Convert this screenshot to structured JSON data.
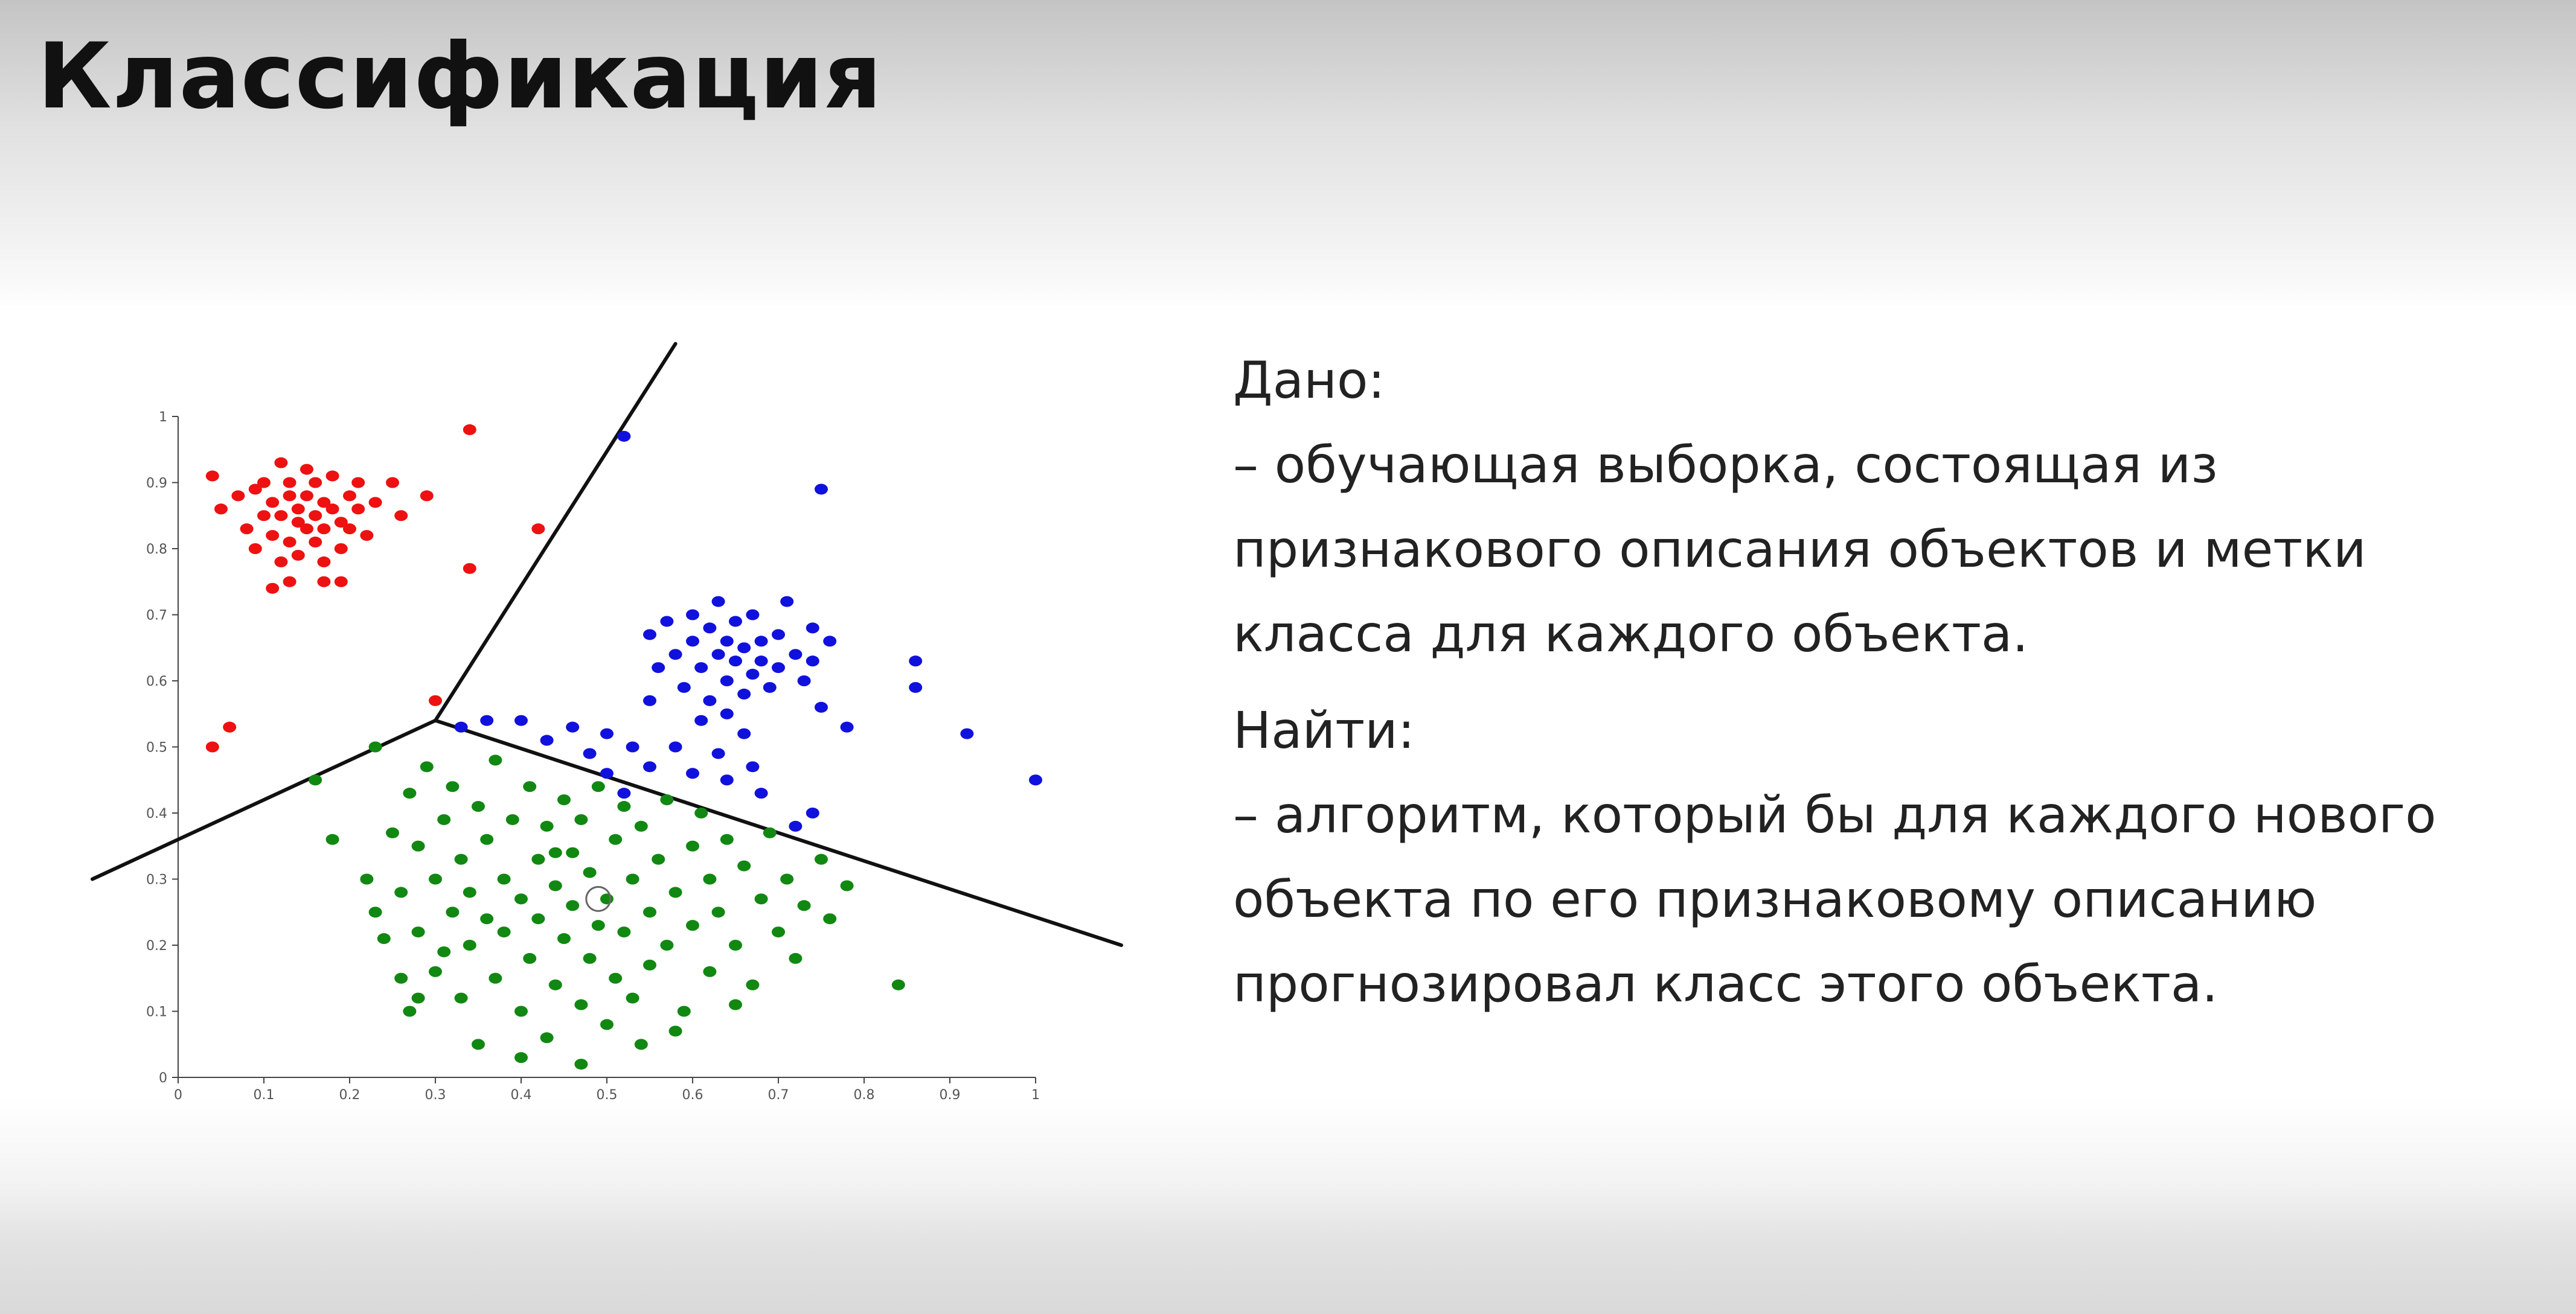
{
  "slide": {
    "title": "Классификация"
  },
  "text": {
    "given_label": "Дано:",
    "given_lines": [
      "–  обучающая выборка, состоящая из",
      "признакового описания объектов и метки",
      "класса для каждого объекта."
    ],
    "find_label": "Найти:",
    "find_lines": [
      "–  алгоритм, который бы для каждого нового",
      "объекта по его признаковому описанию",
      "прогнозировал класс этого объекта."
    ]
  },
  "chart_data": {
    "type": "scatter",
    "title": "",
    "xlabel": "",
    "ylabel": "",
    "xlim": [
      0,
      1
    ],
    "ylim": [
      0,
      1
    ],
    "x_ticks": [
      "0",
      "0.1",
      "0.2",
      "0.3",
      "0.4",
      "0.5",
      "0.6",
      "0.7",
      "0.8",
      "0.9",
      "1"
    ],
    "y_ticks": [
      "0",
      "0.1",
      "0.2",
      "0.3",
      "0.4",
      "0.5",
      "0.6",
      "0.7",
      "0.8",
      "0.9",
      "1"
    ],
    "grid": false,
    "legend": "none",
    "series": [
      {
        "color": "#ee1111",
        "points": [
          [
            0.04,
            0.91
          ],
          [
            0.05,
            0.86
          ],
          [
            0.07,
            0.88
          ],
          [
            0.08,
            0.83
          ],
          [
            0.09,
            0.89
          ],
          [
            0.09,
            0.8
          ],
          [
            0.1,
            0.85
          ],
          [
            0.1,
            0.9
          ],
          [
            0.11,
            0.82
          ],
          [
            0.11,
            0.87
          ],
          [
            0.12,
            0.93
          ],
          [
            0.12,
            0.78
          ],
          [
            0.12,
            0.85
          ],
          [
            0.13,
            0.88
          ],
          [
            0.13,
            0.81
          ],
          [
            0.13,
            0.9
          ],
          [
            0.14,
            0.84
          ],
          [
            0.14,
            0.86
          ],
          [
            0.14,
            0.79
          ],
          [
            0.15,
            0.92
          ],
          [
            0.15,
            0.83
          ],
          [
            0.15,
            0.88
          ],
          [
            0.16,
            0.85
          ],
          [
            0.16,
            0.81
          ],
          [
            0.16,
            0.9
          ],
          [
            0.17,
            0.87
          ],
          [
            0.17,
            0.83
          ],
          [
            0.17,
            0.78
          ],
          [
            0.18,
            0.86
          ],
          [
            0.18,
            0.91
          ],
          [
            0.19,
            0.84
          ],
          [
            0.19,
            0.8
          ],
          [
            0.2,
            0.88
          ],
          [
            0.2,
            0.83
          ],
          [
            0.21,
            0.86
          ],
          [
            0.21,
            0.9
          ],
          [
            0.22,
            0.82
          ],
          [
            0.23,
            0.87
          ],
          [
            0.11,
            0.74
          ],
          [
            0.13,
            0.75
          ],
          [
            0.17,
            0.75
          ],
          [
            0.19,
            0.75
          ],
          [
            0.25,
            0.9
          ],
          [
            0.26,
            0.85
          ],
          [
            0.29,
            0.88
          ],
          [
            0.34,
            0.98
          ],
          [
            0.42,
            0.83
          ],
          [
            0.34,
            0.77
          ],
          [
            0.3,
            0.57
          ],
          [
            0.06,
            0.53
          ],
          [
            0.04,
            0.5
          ]
        ]
      },
      {
        "color": "#1111dd",
        "points": [
          [
            0.52,
            0.97
          ],
          [
            0.75,
            0.89
          ],
          [
            0.55,
            0.67
          ],
          [
            0.56,
            0.62
          ],
          [
            0.57,
            0.69
          ],
          [
            0.58,
            0.64
          ],
          [
            0.59,
            0.59
          ],
          [
            0.6,
            0.7
          ],
          [
            0.6,
            0.66
          ],
          [
            0.61,
            0.62
          ],
          [
            0.62,
            0.57
          ],
          [
            0.62,
            0.68
          ],
          [
            0.63,
            0.64
          ],
          [
            0.63,
            0.72
          ],
          [
            0.64,
            0.6
          ],
          [
            0.64,
            0.66
          ],
          [
            0.65,
            0.63
          ],
          [
            0.65,
            0.69
          ],
          [
            0.66,
            0.58
          ],
          [
            0.66,
            0.65
          ],
          [
            0.67,
            0.61
          ],
          [
            0.67,
            0.7
          ],
          [
            0.68,
            0.63
          ],
          [
            0.68,
            0.66
          ],
          [
            0.69,
            0.59
          ],
          [
            0.7,
            0.67
          ],
          [
            0.7,
            0.62
          ],
          [
            0.71,
            0.72
          ],
          [
            0.72,
            0.64
          ],
          [
            0.73,
            0.6
          ],
          [
            0.74,
            0.68
          ],
          [
            0.74,
            0.63
          ],
          [
            0.76,
            0.66
          ],
          [
            0.61,
            0.54
          ],
          [
            0.64,
            0.55
          ],
          [
            0.58,
            0.5
          ],
          [
            0.63,
            0.49
          ],
          [
            0.66,
            0.52
          ],
          [
            0.6,
            0.46
          ],
          [
            0.64,
            0.45
          ],
          [
            0.67,
            0.47
          ],
          [
            0.68,
            0.43
          ],
          [
            0.55,
            0.47
          ],
          [
            0.53,
            0.5
          ],
          [
            0.5,
            0.52
          ],
          [
            0.48,
            0.49
          ],
          [
            0.46,
            0.53
          ],
          [
            0.43,
            0.51
          ],
          [
            0.4,
            0.54
          ],
          [
            0.36,
            0.54
          ],
          [
            0.33,
            0.53
          ],
          [
            0.5,
            0.46
          ],
          [
            0.52,
            0.43
          ],
          [
            0.72,
            0.38
          ],
          [
            0.74,
            0.4
          ],
          [
            0.75,
            0.56
          ],
          [
            0.78,
            0.53
          ],
          [
            0.86,
            0.63
          ],
          [
            0.86,
            0.59
          ],
          [
            0.92,
            0.52
          ],
          [
            1.0,
            0.45
          ],
          [
            0.55,
            0.57
          ]
        ]
      },
      {
        "color": "#118811",
        "points": [
          [
            0.16,
            0.45
          ],
          [
            0.18,
            0.36
          ],
          [
            0.23,
            0.5
          ],
          [
            0.25,
            0.37
          ],
          [
            0.22,
            0.3
          ],
          [
            0.23,
            0.25
          ],
          [
            0.24,
            0.21
          ],
          [
            0.26,
            0.28
          ],
          [
            0.27,
            0.43
          ],
          [
            0.28,
            0.35
          ],
          [
            0.28,
            0.22
          ],
          [
            0.29,
            0.47
          ],
          [
            0.3,
            0.3
          ],
          [
            0.3,
            0.16
          ],
          [
            0.31,
            0.39
          ],
          [
            0.32,
            0.25
          ],
          [
            0.32,
            0.44
          ],
          [
            0.33,
            0.33
          ],
          [
            0.33,
            0.12
          ],
          [
            0.34,
            0.2
          ],
          [
            0.34,
            0.28
          ],
          [
            0.35,
            0.41
          ],
          [
            0.36,
            0.24
          ],
          [
            0.36,
            0.36
          ],
          [
            0.37,
            0.15
          ],
          [
            0.37,
            0.48
          ],
          [
            0.38,
            0.3
          ],
          [
            0.38,
            0.22
          ],
          [
            0.39,
            0.39
          ],
          [
            0.4,
            0.27
          ],
          [
            0.4,
            0.1
          ],
          [
            0.41,
            0.44
          ],
          [
            0.41,
            0.18
          ],
          [
            0.42,
            0.33
          ],
          [
            0.42,
            0.24
          ],
          [
            0.43,
            0.38
          ],
          [
            0.43,
            0.06
          ],
          [
            0.44,
            0.29
          ],
          [
            0.44,
            0.14
          ],
          [
            0.45,
            0.42
          ],
          [
            0.45,
            0.21
          ],
          [
            0.46,
            0.34
          ],
          [
            0.46,
            0.26
          ],
          [
            0.47,
            0.11
          ],
          [
            0.47,
            0.39
          ],
          [
            0.48,
            0.18
          ],
          [
            0.48,
            0.31
          ],
          [
            0.49,
            0.23
          ],
          [
            0.49,
            0.44
          ],
          [
            0.5,
            0.27
          ],
          [
            0.5,
            0.08
          ],
          [
            0.51,
            0.36
          ],
          [
            0.51,
            0.15
          ],
          [
            0.52,
            0.41
          ],
          [
            0.52,
            0.22
          ],
          [
            0.53,
            0.3
          ],
          [
            0.53,
            0.12
          ],
          [
            0.54,
            0.38
          ],
          [
            0.55,
            0.25
          ],
          [
            0.55,
            0.17
          ],
          [
            0.56,
            0.33
          ],
          [
            0.57,
            0.42
          ],
          [
            0.57,
            0.2
          ],
          [
            0.58,
            0.28
          ],
          [
            0.59,
            0.1
          ],
          [
            0.6,
            0.35
          ],
          [
            0.6,
            0.23
          ],
          [
            0.61,
            0.4
          ],
          [
            0.62,
            0.16
          ],
          [
            0.62,
            0.3
          ],
          [
            0.63,
            0.25
          ],
          [
            0.64,
            0.36
          ],
          [
            0.65,
            0.2
          ],
          [
            0.66,
            0.32
          ],
          [
            0.67,
            0.14
          ],
          [
            0.68,
            0.27
          ],
          [
            0.69,
            0.37
          ],
          [
            0.7,
            0.22
          ],
          [
            0.71,
            0.3
          ],
          [
            0.72,
            0.18
          ],
          [
            0.73,
            0.26
          ],
          [
            0.75,
            0.33
          ],
          [
            0.76,
            0.24
          ],
          [
            0.78,
            0.29
          ],
          [
            0.84,
            0.14
          ],
          [
            0.26,
            0.15
          ],
          [
            0.27,
            0.1
          ],
          [
            0.35,
            0.05
          ],
          [
            0.4,
            0.03
          ],
          [
            0.47,
            0.02
          ],
          [
            0.28,
            0.12
          ],
          [
            0.31,
            0.19
          ],
          [
            0.44,
            0.34
          ],
          [
            0.54,
            0.05
          ],
          [
            0.58,
            0.07
          ],
          [
            0.65,
            0.11
          ]
        ]
      }
    ],
    "boundaries": [
      {
        "from": [
          0.3,
          0.54
        ],
        "to": [
          0.58,
          1.11
        ]
      },
      {
        "from": [
          0.3,
          0.54
        ],
        "to": [
          -0.1,
          0.3
        ]
      },
      {
        "from": [
          0.3,
          0.54
        ],
        "to": [
          1.1,
          0.2
        ]
      }
    ],
    "highlighted_point": [
      0.49,
      0.27
    ]
  }
}
